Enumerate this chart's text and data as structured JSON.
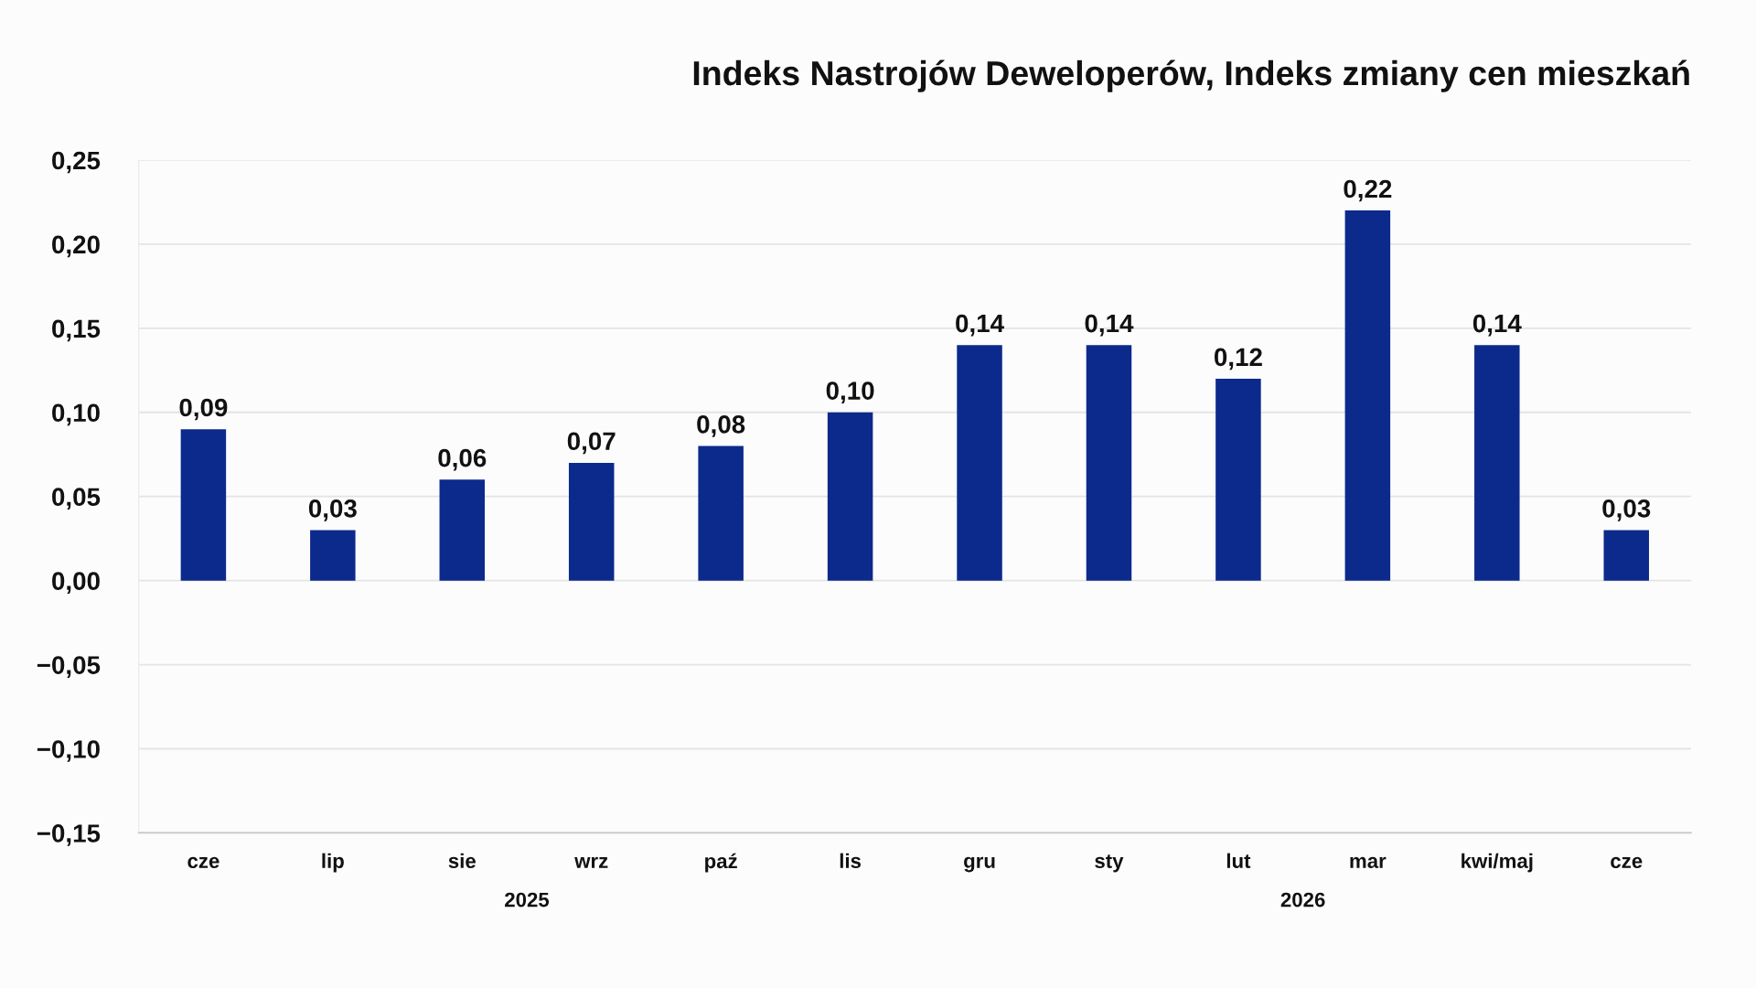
{
  "chart_data": {
    "type": "bar",
    "title": "Indeks Nastrojów Deweloperów, Indeks zmiany cen mieszkań",
    "categories": [
      "cze",
      "lip",
      "sie",
      "wrz",
      "paź",
      "lis",
      "gru",
      "sty",
      "lut",
      "mar",
      "kwi/maj",
      "cze"
    ],
    "values": [
      0.09,
      0.03,
      0.06,
      0.07,
      0.08,
      0.1,
      0.14,
      0.14,
      0.12,
      0.22,
      0.14,
      0.03
    ],
    "value_labels": [
      "0,09",
      "0,03",
      "0,06",
      "0,07",
      "0,08",
      "0,10",
      "0,14",
      "0,14",
      "0,12",
      "0,22",
      "0,14",
      "0,03"
    ],
    "color": "#0c2a8c",
    "ylim": [
      -0.15,
      0.25
    ],
    "yticks": [
      {
        "value": -0.15,
        "label": "−0,15"
      },
      {
        "value": -0.1,
        "label": "−0,10"
      },
      {
        "value": -0.05,
        "label": "−0,05"
      },
      {
        "value": 0,
        "label": "0,00"
      },
      {
        "value": 0.05,
        "label": "0,05"
      },
      {
        "value": 0.1,
        "label": "0,10"
      },
      {
        "value": 0.15,
        "label": "0,15"
      },
      {
        "value": 0.2,
        "label": "0,20"
      },
      {
        "value": 0.25,
        "label": "0,25"
      }
    ],
    "annotations": [
      "2025",
      "2026"
    ],
    "grid": "y"
  }
}
